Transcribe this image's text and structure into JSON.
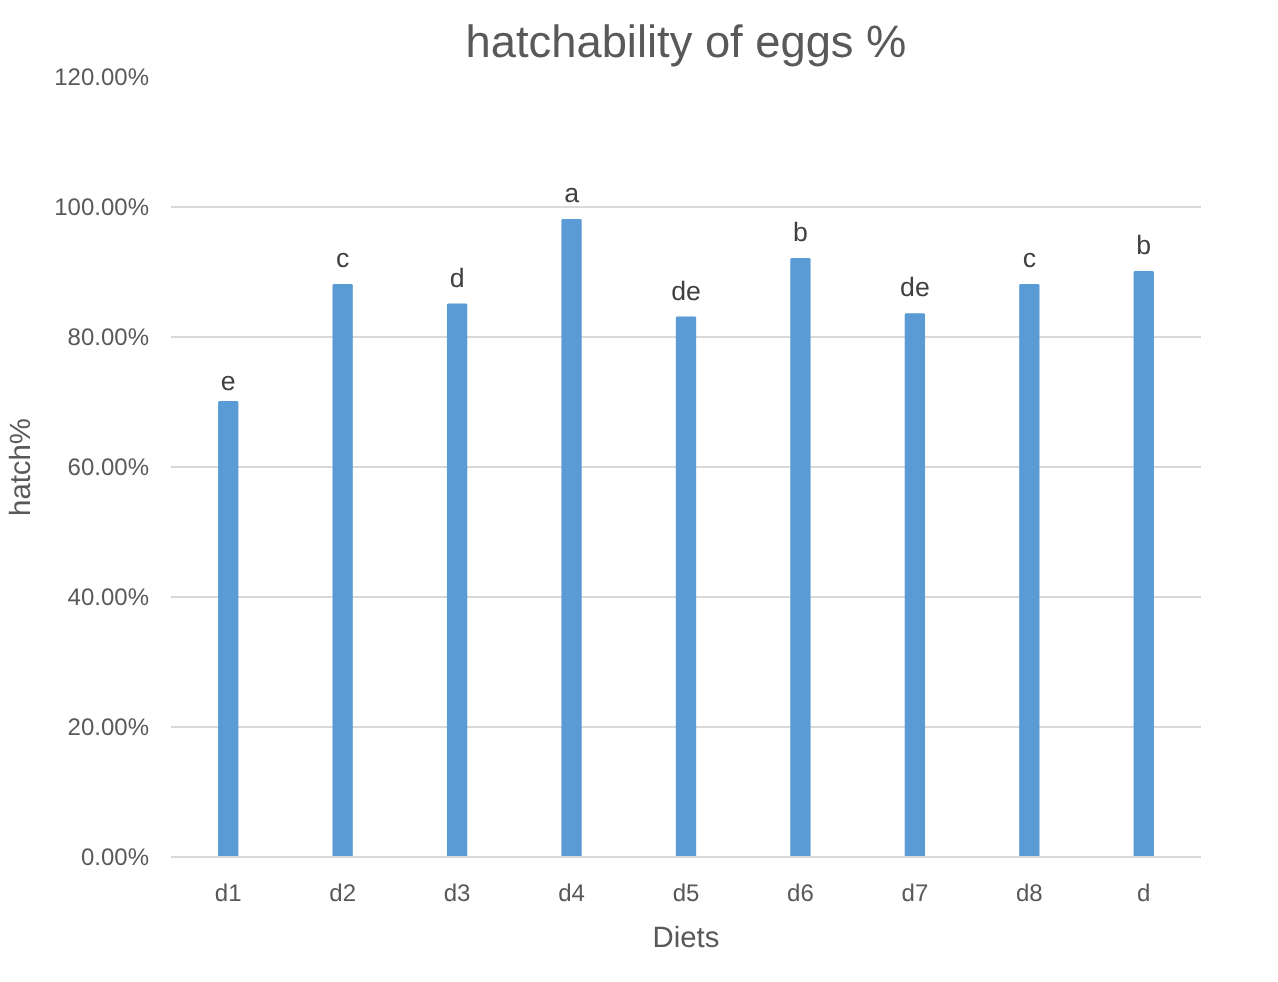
{
  "chart_data": {
    "type": "bar",
    "title": "hatchability of eggs %",
    "xlabel": "Diets",
    "ylabel": "hatch%",
    "categories": [
      "d1",
      "d2",
      "d3",
      "d4",
      "d5",
      "d6",
      "d7",
      "d8",
      "d"
    ],
    "values": [
      70,
      88,
      85,
      98,
      83,
      92,
      83.5,
      88,
      90
    ],
    "value_labels": [
      "e",
      "c",
      "d",
      "a",
      "de",
      "b",
      "de",
      "c",
      "b"
    ],
    "color": "#5b9bd5",
    "ylim": [
      0,
      120
    ],
    "yticks": [
      {
        "value": 0,
        "label": "0.00%"
      },
      {
        "value": 20,
        "label": "20.00%"
      },
      {
        "value": 40,
        "label": "40.00%"
      },
      {
        "value": 60,
        "label": "60.00%"
      },
      {
        "value": 80,
        "label": "80.00%"
      },
      {
        "value": 100,
        "label": "100.00%"
      },
      {
        "value": 120,
        "label": "120.00%"
      }
    ],
    "grid": "y"
  }
}
